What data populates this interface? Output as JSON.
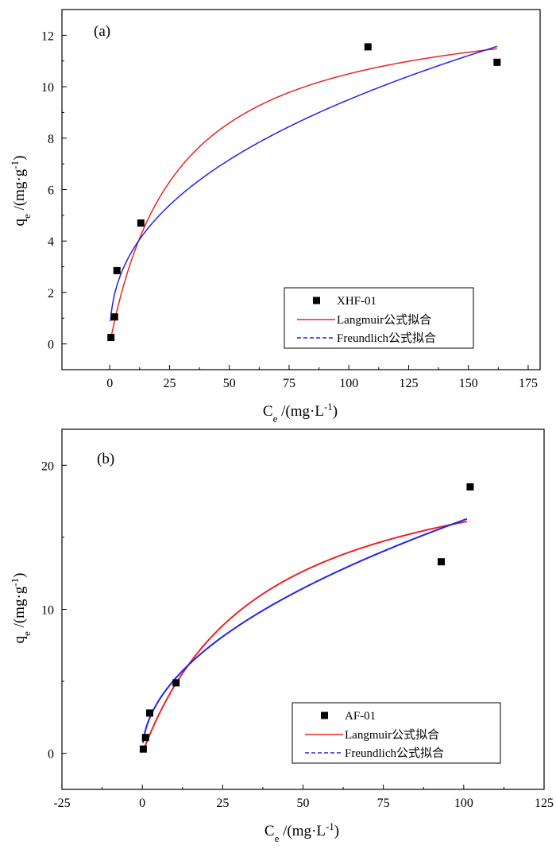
{
  "chart_data": [
    {
      "type": "scatter",
      "panel_label": "(a)",
      "xlabel": {
        "main": "C",
        "sub": "e",
        "unit": " /(mg·L",
        "sup": "-1",
        "close": ")"
      },
      "ylabel": {
        "main": "q",
        "sub": "e",
        "unit": " /(mg·g",
        "sup": "-1",
        "close": ")"
      },
      "xlim": [
        -20,
        180
      ],
      "ylim": [
        -1,
        13
      ],
      "xticks": [
        0,
        25,
        50,
        75,
        100,
        125,
        150,
        175
      ],
      "yticks": [
        0,
        2,
        4,
        6,
        8,
        10,
        12
      ],
      "grid": false,
      "legend_position": "bottom-right",
      "points": {
        "name": "XHF-01",
        "color": "#000000",
        "x": [
          0.5,
          2.0,
          3.0,
          13.0,
          108.0,
          162.0
        ],
        "y": [
          0.25,
          1.05,
          2.85,
          4.7,
          11.55,
          10.95
        ]
      },
      "fits": [
        {
          "name": "Langmuir公式拟合",
          "kind": "langmuir",
          "qmax": 13.5,
          "K": 0.035,
          "x_range": [
            0.8,
            162
          ],
          "color": "#ee2222",
          "dash": "none"
        },
        {
          "name": "Freundlich公式拟合",
          "kind": "freundlich",
          "Kf": 1.45,
          "n": 2.45,
          "x_range": [
            0.3,
            162
          ],
          "color": "#2222ee",
          "dash": "5,3"
        }
      ]
    },
    {
      "type": "scatter",
      "panel_label": "(b)",
      "xlabel": {
        "main": "C",
        "sub": "e",
        "unit": " /(mg·L",
        "sup": "-1",
        "close": ")"
      },
      "ylabel": {
        "main": "q",
        "sub": "e",
        "unit": " /(mg·g",
        "sup": "-1",
        "close": ")"
      },
      "xlim": [
        -25,
        125
      ],
      "ylim": [
        -2.5,
        22.5
      ],
      "xticks": [
        -25,
        0,
        25,
        50,
        75,
        100,
        125
      ],
      "yticks": [
        0,
        10,
        20
      ],
      "grid": false,
      "legend_position": "bottom-right",
      "points": {
        "name": "AF-01",
        "color": "#000000",
        "x": [
          0.3,
          1.0,
          2.3,
          10.5,
          93.0,
          102.0
        ],
        "y": [
          0.3,
          1.1,
          2.8,
          4.9,
          13.3,
          18.5
        ]
      },
      "fits": [
        {
          "name": "Langmuir公式拟合",
          "kind": "langmuir",
          "qmax": 22.0,
          "K": 0.027,
          "x_range": [
            0.5,
            101
          ],
          "color": "#ee2222",
          "dash": "none"
        },
        {
          "name": "Freundlich公式拟合",
          "kind": "freundlich",
          "Kf": 1.62,
          "n": 2.0,
          "x_range": [
            0.2,
            101
          ],
          "color": "#2222ee",
          "dash": "5,3"
        }
      ]
    }
  ]
}
